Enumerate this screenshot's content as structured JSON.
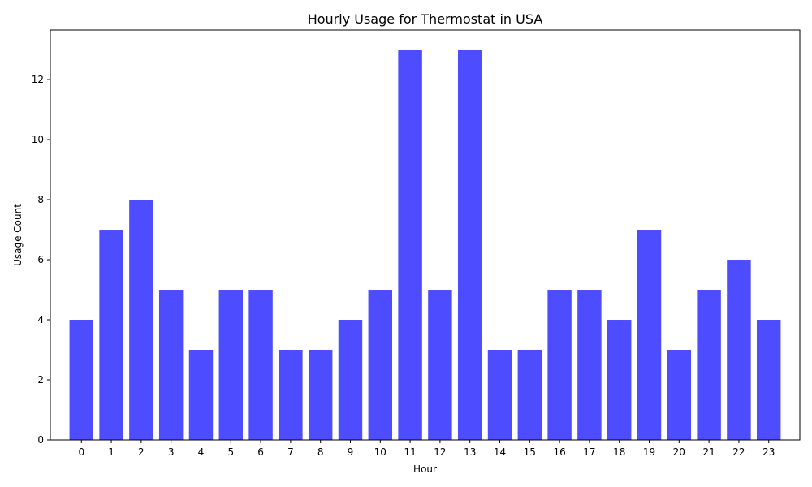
{
  "chart_data": {
    "type": "bar",
    "title": "Hourly Usage for Thermostat in USA",
    "xlabel": "Hour",
    "ylabel": "Usage Count",
    "categories": [
      "0",
      "1",
      "2",
      "3",
      "4",
      "5",
      "6",
      "7",
      "8",
      "9",
      "10",
      "11",
      "12",
      "13",
      "14",
      "15",
      "16",
      "17",
      "18",
      "19",
      "20",
      "21",
      "22",
      "23"
    ],
    "values": [
      4,
      7,
      8,
      5,
      3,
      5,
      5,
      3,
      3,
      4,
      5,
      13,
      5,
      13,
      3,
      3,
      5,
      5,
      4,
      7,
      3,
      5,
      6,
      4
    ],
    "ylim": [
      0,
      13.65
    ],
    "yticks": [
      0,
      2,
      4,
      6,
      8,
      10,
      12
    ],
    "grid": false,
    "bar_color": "#4d4dff",
    "axis_color": "#000000"
  }
}
